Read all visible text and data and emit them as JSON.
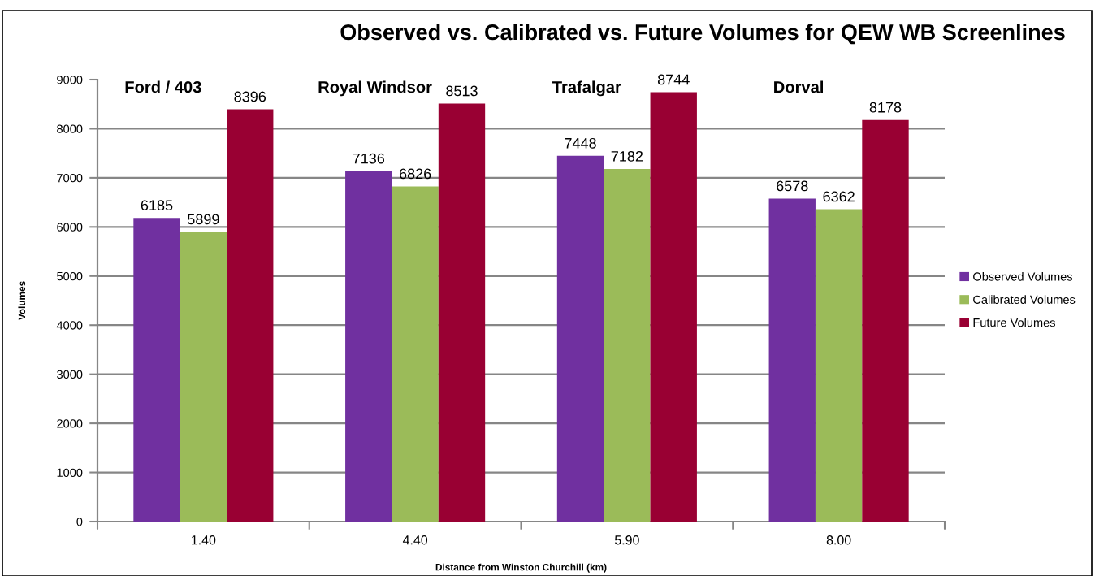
{
  "chart_data": {
    "type": "bar",
    "title": "Observed vs. Calibrated vs. Future Volumes for QEW WB Screenlines",
    "xlabel": "Distance from Winston Churchill (km)",
    "ylabel": "Volumes",
    "categories": [
      "1.40",
      "4.40",
      "5.90",
      "8.00"
    ],
    "series": [
      {
        "name": "Observed Volumes",
        "color": "#7030a0",
        "values": [
          6185,
          7136,
          7448,
          6578
        ]
      },
      {
        "name": "Calibrated Volumes",
        "color": "#9bbb59",
        "values": [
          5899,
          6826,
          7182,
          6362
        ]
      },
      {
        "name": "Future Volumes",
        "color": "#990033",
        "values": [
          8396,
          8513,
          8744,
          8178
        ]
      }
    ],
    "ylim": [
      0,
      9000
    ],
    "yticks": [
      0,
      1000,
      2000,
      3000,
      4000,
      5000,
      6000,
      7000,
      8000,
      9000
    ],
    "grid": "y",
    "legend": "right",
    "data_labels": true,
    "annotations": [
      "Ford / 403",
      "Royal Windsor",
      "Trafalgar",
      "Dorval"
    ]
  }
}
